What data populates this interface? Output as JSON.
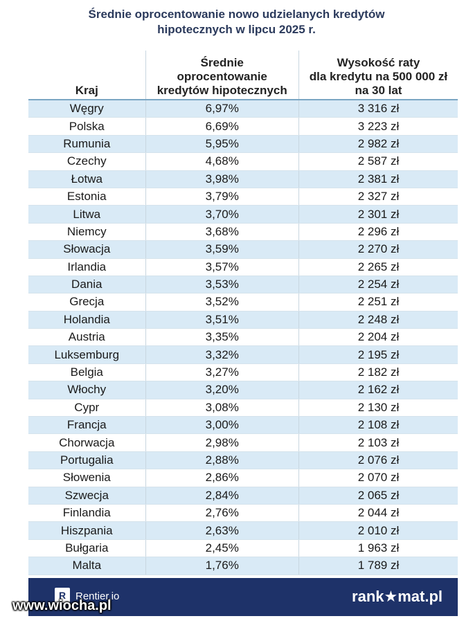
{
  "title": {
    "line1": "Średnie oprocentowanie nowo udzielanych kredytów",
    "line2": "hipotecznych w lipcu 2025 r."
  },
  "table": {
    "headers": {
      "country": "Kraj",
      "rate_l1": "Średnie",
      "rate_l2": "oprocentowanie",
      "rate_l3": "kredytów hipotecznych",
      "pay_l1": "Wysokość raty",
      "pay_l2": "dla kredytu na 500 000 zł",
      "pay_l3": "na  30 lat"
    },
    "rows": [
      {
        "country": "Węgry",
        "rate": "6,97%",
        "payment": "3 316 zł"
      },
      {
        "country": "Polska",
        "rate": "6,69%",
        "payment": "3 223 zł"
      },
      {
        "country": "Rumunia",
        "rate": "5,95%",
        "payment": "2 982 zł"
      },
      {
        "country": "Czechy",
        "rate": "4,68%",
        "payment": "2 587 zł"
      },
      {
        "country": "Łotwa",
        "rate": "3,98%",
        "payment": "2 381 zł"
      },
      {
        "country": "Estonia",
        "rate": "3,79%",
        "payment": "2 327 zł"
      },
      {
        "country": "Litwa",
        "rate": "3,70%",
        "payment": "2 301 zł"
      },
      {
        "country": "Niemcy",
        "rate": "3,68%",
        "payment": "2 296 zł"
      },
      {
        "country": "Słowacja",
        "rate": "3,59%",
        "payment": "2 270 zł"
      },
      {
        "country": "Irlandia",
        "rate": "3,57%",
        "payment": "2 265 zł"
      },
      {
        "country": "Dania",
        "rate": "3,53%",
        "payment": "2 254 zł"
      },
      {
        "country": "Grecja",
        "rate": "3,52%",
        "payment": "2 251 zł"
      },
      {
        "country": "Holandia",
        "rate": "3,51%",
        "payment": "2 248 zł"
      },
      {
        "country": "Austria",
        "rate": "3,35%",
        "payment": "2 204 zł"
      },
      {
        "country": "Luksemburg",
        "rate": "3,32%",
        "payment": "2 195 zł"
      },
      {
        "country": "Belgia",
        "rate": "3,27%",
        "payment": "2 182 zł"
      },
      {
        "country": "Włochy",
        "rate": "3,20%",
        "payment": "2 162 zł"
      },
      {
        "country": "Cypr",
        "rate": "3,08%",
        "payment": "2 130 zł"
      },
      {
        "country": "Francja",
        "rate": "3,00%",
        "payment": "2 108 zł"
      },
      {
        "country": "Chorwacja",
        "rate": "2,98%",
        "payment": "2 103 zł"
      },
      {
        "country": "Portugalia",
        "rate": "2,88%",
        "payment": "2 076 zł"
      },
      {
        "country": "Słowenia",
        "rate": "2,86%",
        "payment": "2 070 zł"
      },
      {
        "country": "Szwecja",
        "rate": "2,84%",
        "payment": "2 065 zł"
      },
      {
        "country": "Finlandia",
        "rate": "2,76%",
        "payment": "2 044 zł"
      },
      {
        "country": "Hiszpania",
        "rate": "2,63%",
        "payment": "2 010 zł"
      },
      {
        "country": "Bułgaria",
        "rate": "2,45%",
        "payment": "1 963 zł"
      },
      {
        "country": "Malta",
        "rate": "1,76%",
        "payment": "1 789 zł"
      }
    ]
  },
  "footer": {
    "rentier_logo": "R",
    "rentier_text": "Rentier.io",
    "rankomat": "rank★mat.pl"
  },
  "watermark": "www.wiocha.pl",
  "colors": {
    "title": "#2b3a5c",
    "row_alt": "#d9eaf6",
    "footer_bg": "#1e3269"
  }
}
